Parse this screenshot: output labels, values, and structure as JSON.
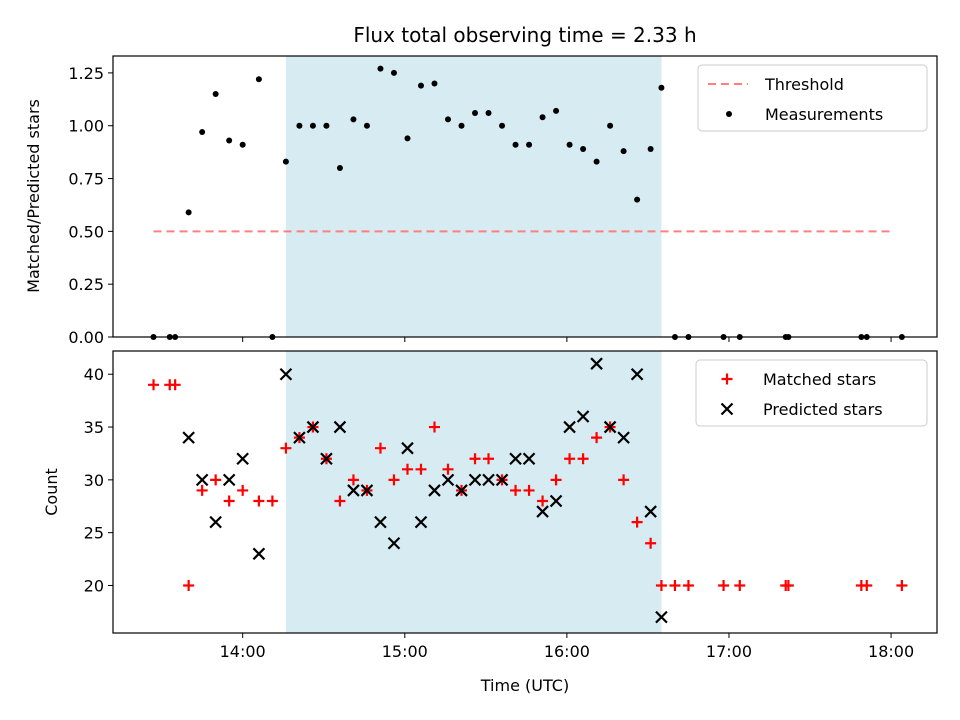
{
  "colors": {
    "span": "#add8e6",
    "threshold": "#ff8080",
    "matched": "#ff0000",
    "predicted": "#000000",
    "measurement": "#000000"
  },
  "chart_data": [
    {
      "type": "scatter",
      "title": "Flux total observing time = 2.33 h",
      "xlabel": "",
      "ylabel": "Matched/Predicted stars",
      "xlim": [
        "13:12",
        "18:17"
      ],
      "ylim": [
        0,
        1.33
      ],
      "yticks": [
        "0.00",
        "0.25",
        "0.50",
        "0.75",
        "1.00",
        "1.25"
      ],
      "xticks": [
        "14:00",
        "15:00",
        "16:00",
        "17:00",
        "18:00"
      ],
      "show_xtick_labels": false,
      "highlight_span": [
        "14:16",
        "16:35"
      ],
      "legend": {
        "position": "top-right",
        "entries": [
          "Threshold",
          "Measurements"
        ]
      },
      "series": [
        {
          "name": "Threshold",
          "kind": "dashed-line",
          "points": [
            [
              "13:27",
              0.5
            ],
            [
              "18:00",
              0.5
            ]
          ]
        },
        {
          "name": "Measurements",
          "kind": "dots",
          "points": [
            [
              "13:27",
              0.0
            ],
            [
              "13:33",
              0.0
            ],
            [
              "13:35",
              0.0
            ],
            [
              "13:40",
              0.59
            ],
            [
              "13:45",
              0.97
            ],
            [
              "13:50",
              1.15
            ],
            [
              "13:55",
              0.93
            ],
            [
              "14:00",
              0.91
            ],
            [
              "14:06",
              1.22
            ],
            [
              "14:11",
              0.0
            ],
            [
              "14:16",
              0.83
            ],
            [
              "14:21",
              1.0
            ],
            [
              "14:26",
              1.0
            ],
            [
              "14:31",
              1.0
            ],
            [
              "14:36",
              0.8
            ],
            [
              "14:41",
              1.03
            ],
            [
              "14:46",
              1.0
            ],
            [
              "14:51",
              1.27
            ],
            [
              "14:56",
              1.25
            ],
            [
              "15:01",
              0.94
            ],
            [
              "15:06",
              1.19
            ],
            [
              "15:11",
              1.2
            ],
            [
              "15:16",
              1.03
            ],
            [
              "15:21",
              1.0
            ],
            [
              "15:26",
              1.06
            ],
            [
              "15:31",
              1.06
            ],
            [
              "15:36",
              1.0
            ],
            [
              "15:41",
              0.91
            ],
            [
              "15:46",
              0.91
            ],
            [
              "15:51",
              1.04
            ],
            [
              "15:56",
              1.07
            ],
            [
              "16:01",
              0.91
            ],
            [
              "16:06",
              0.89
            ],
            [
              "16:11",
              0.83
            ],
            [
              "16:16",
              1.0
            ],
            [
              "16:21",
              0.88
            ],
            [
              "16:26",
              0.65
            ],
            [
              "16:31",
              0.89
            ],
            [
              "16:35",
              1.18
            ],
            [
              "16:40",
              0.0
            ],
            [
              "16:45",
              0.0
            ],
            [
              "16:58",
              0.0
            ],
            [
              "17:04",
              0.0
            ],
            [
              "17:21",
              0.0
            ],
            [
              "17:22",
              0.0
            ],
            [
              "17:49",
              0.0
            ],
            [
              "17:51",
              0.0
            ],
            [
              "18:04",
              0.0
            ]
          ]
        }
      ]
    },
    {
      "type": "scatter",
      "title": "",
      "xlabel": "Time (UTC)",
      "ylabel": "Count",
      "xlim": [
        "13:12",
        "18:17"
      ],
      "ylim": [
        15.5,
        42.2
      ],
      "yticks": [
        "20",
        "25",
        "30",
        "35",
        "40"
      ],
      "xticks": [
        "14:00",
        "15:00",
        "16:00",
        "17:00",
        "18:00"
      ],
      "highlight_span": [
        "14:16",
        "16:35"
      ],
      "legend": {
        "position": "top-right",
        "entries": [
          "Matched stars",
          "Predicted stars"
        ]
      },
      "series": [
        {
          "name": "Matched stars",
          "kind": "plus",
          "points": [
            [
              "13:27",
              39
            ],
            [
              "13:33",
              39
            ],
            [
              "13:35",
              39
            ],
            [
              "13:40",
              20
            ],
            [
              "13:45",
              29
            ],
            [
              "13:50",
              30
            ],
            [
              "13:55",
              28
            ],
            [
              "14:00",
              29
            ],
            [
              "14:06",
              28
            ],
            [
              "14:11",
              28
            ],
            [
              "14:16",
              33
            ],
            [
              "14:21",
              34
            ],
            [
              "14:26",
              35
            ],
            [
              "14:31",
              32
            ],
            [
              "14:36",
              28
            ],
            [
              "14:41",
              30
            ],
            [
              "14:46",
              29
            ],
            [
              "14:51",
              33
            ],
            [
              "14:56",
              30
            ],
            [
              "15:01",
              31
            ],
            [
              "15:06",
              31
            ],
            [
              "15:11",
              35
            ],
            [
              "15:16",
              31
            ],
            [
              "15:21",
              29
            ],
            [
              "15:26",
              32
            ],
            [
              "15:31",
              32
            ],
            [
              "15:36",
              30
            ],
            [
              "15:41",
              29
            ],
            [
              "15:46",
              29
            ],
            [
              "15:51",
              28
            ],
            [
              "15:56",
              30
            ],
            [
              "16:01",
              32
            ],
            [
              "16:06",
              32
            ],
            [
              "16:11",
              34
            ],
            [
              "16:16",
              35
            ],
            [
              "16:21",
              30
            ],
            [
              "16:26",
              26
            ],
            [
              "16:31",
              24
            ],
            [
              "16:35",
              20
            ],
            [
              "16:40",
              20
            ],
            [
              "16:45",
              20
            ],
            [
              "16:58",
              20
            ],
            [
              "17:04",
              20
            ],
            [
              "17:21",
              20
            ],
            [
              "17:22",
              20
            ],
            [
              "17:49",
              20
            ],
            [
              "17:51",
              20
            ],
            [
              "18:04",
              20
            ]
          ]
        },
        {
          "name": "Predicted stars",
          "kind": "cross",
          "points": [
            [
              "13:40",
              34
            ],
            [
              "13:45",
              30
            ],
            [
              "13:50",
              26
            ],
            [
              "13:55",
              30
            ],
            [
              "14:00",
              32
            ],
            [
              "14:06",
              23
            ],
            [
              "14:16",
              40
            ],
            [
              "14:21",
              34
            ],
            [
              "14:26",
              35
            ],
            [
              "14:31",
              32
            ],
            [
              "14:36",
              35
            ],
            [
              "14:41",
              29
            ],
            [
              "14:46",
              29
            ],
            [
              "14:51",
              26
            ],
            [
              "14:56",
              24
            ],
            [
              "15:01",
              33
            ],
            [
              "15:06",
              26
            ],
            [
              "15:11",
              29
            ],
            [
              "15:16",
              30
            ],
            [
              "15:21",
              29
            ],
            [
              "15:26",
              30
            ],
            [
              "15:31",
              30
            ],
            [
              "15:36",
              30
            ],
            [
              "15:41",
              32
            ],
            [
              "15:46",
              32
            ],
            [
              "15:51",
              27
            ],
            [
              "15:56",
              28
            ],
            [
              "16:01",
              35
            ],
            [
              "16:06",
              36
            ],
            [
              "16:11",
              41
            ],
            [
              "16:16",
              35
            ],
            [
              "16:21",
              34
            ],
            [
              "16:26",
              40
            ],
            [
              "16:31",
              27
            ],
            [
              "16:35",
              17
            ]
          ]
        }
      ]
    }
  ]
}
